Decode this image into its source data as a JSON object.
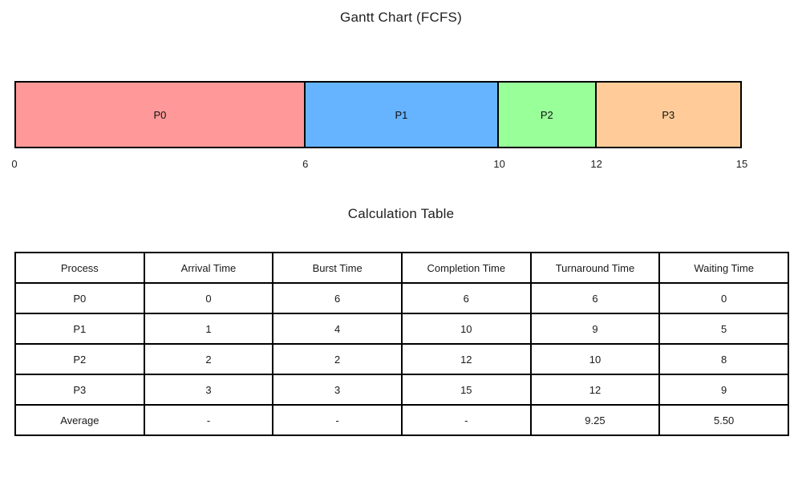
{
  "chart_data": [
    {
      "type": "bar",
      "subtype": "gantt",
      "title": "Gantt Chart (FCFS)",
      "xlabel": "",
      "ylabel": "",
      "xlim": [
        0,
        15
      ],
      "xticks": [
        0,
        6,
        10,
        12,
        15
      ],
      "grid": false,
      "segments": [
        {
          "label": "P0",
          "start": 0,
          "end": 6,
          "color": "#ff9999"
        },
        {
          "label": "P1",
          "start": 6,
          "end": 10,
          "color": "#66b3ff"
        },
        {
          "label": "P2",
          "start": 10,
          "end": 12,
          "color": "#99ff99"
        },
        {
          "label": "P3",
          "start": 12,
          "end": 15,
          "color": "#ffcc99"
        }
      ]
    },
    {
      "type": "table",
      "title": "Calculation Table",
      "columns": [
        "Process",
        "Arrival Time",
        "Burst Time",
        "Completion Time",
        "Turnaround Time",
        "Waiting Time"
      ],
      "rows": [
        [
          "P0",
          "0",
          "6",
          "6",
          "6",
          "0"
        ],
        [
          "P1",
          "1",
          "4",
          "10",
          "9",
          "5"
        ],
        [
          "P2",
          "2",
          "2",
          "12",
          "10",
          "8"
        ],
        [
          "P3",
          "3",
          "3",
          "15",
          "12",
          "9"
        ],
        [
          "Average",
          "-",
          "-",
          "-",
          "9.25",
          "5.50"
        ]
      ]
    }
  ],
  "colors": {
    "background": "#ffffff",
    "border": "#000000",
    "text": "#1a1a1a",
    "p0": "#ff9999",
    "p1": "#66b3ff",
    "p2": "#99ff99",
    "p3": "#ffcc99"
  }
}
